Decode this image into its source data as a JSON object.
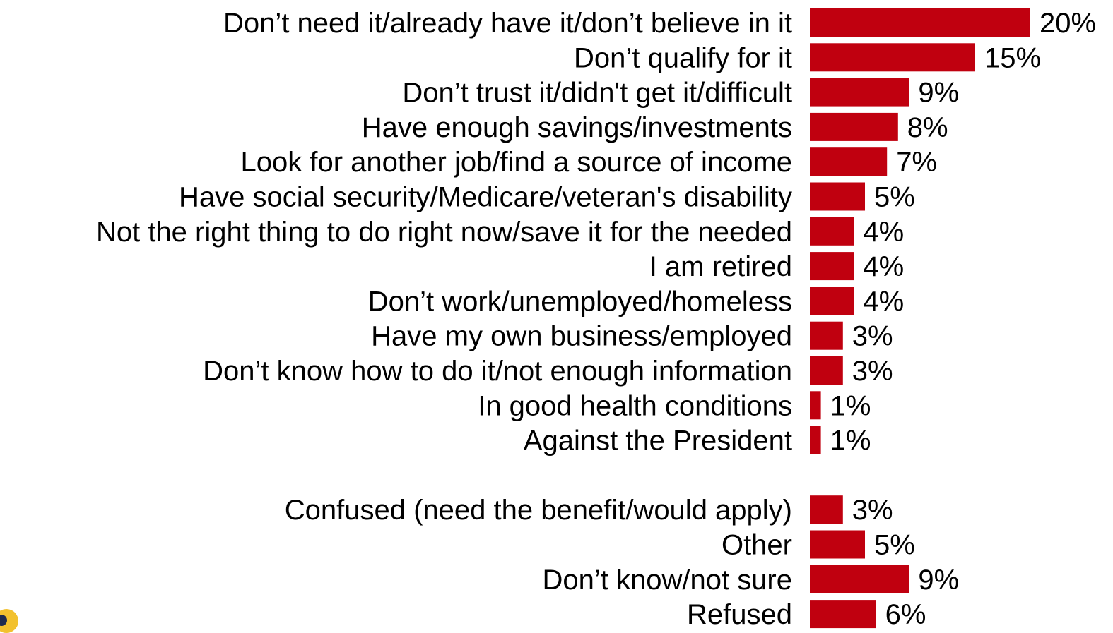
{
  "chart_data": {
    "type": "bar",
    "orientation": "horizontal",
    "title": "",
    "xlabel": "",
    "ylabel": "",
    "grid": false,
    "legend": "none",
    "bar_color": "#c0000f",
    "xlim": [
      0,
      21
    ],
    "groups": [
      {
        "categories": [
          "Don’t need it/already have it/don’t believe in it",
          "Don’t qualify for it",
          "Don’t trust it/didn't get it/difficult",
          "Have enough savings/investments",
          "Look for another job/find a source of income",
          "Have social security/Medicare/veteran's disability",
          "Not the right thing to do right now/save it for the needed",
          "I am retired",
          "Don’t work/unemployed/homeless",
          "Have my own business/employed",
          "Don’t know how to do it/not enough information",
          "In good health conditions",
          "Against the President"
        ],
        "values": [
          20,
          15,
          9,
          8,
          7,
          5,
          4,
          4,
          4,
          3,
          3,
          1,
          1
        ],
        "value_labels": [
          "20%",
          "15%",
          "9%",
          "8%",
          "7%",
          "5%",
          "4%",
          "4%",
          "4%",
          "3%",
          "3%",
          "1%",
          "1%"
        ]
      },
      {
        "categories": [
          "Confused (need the benefit/would apply)",
          "Other",
          "Don’t know/not sure",
          "Refused"
        ],
        "values": [
          3,
          5,
          9,
          6
        ],
        "value_labels": [
          "3%",
          "5%",
          "9%",
          "6%"
        ]
      }
    ]
  }
}
